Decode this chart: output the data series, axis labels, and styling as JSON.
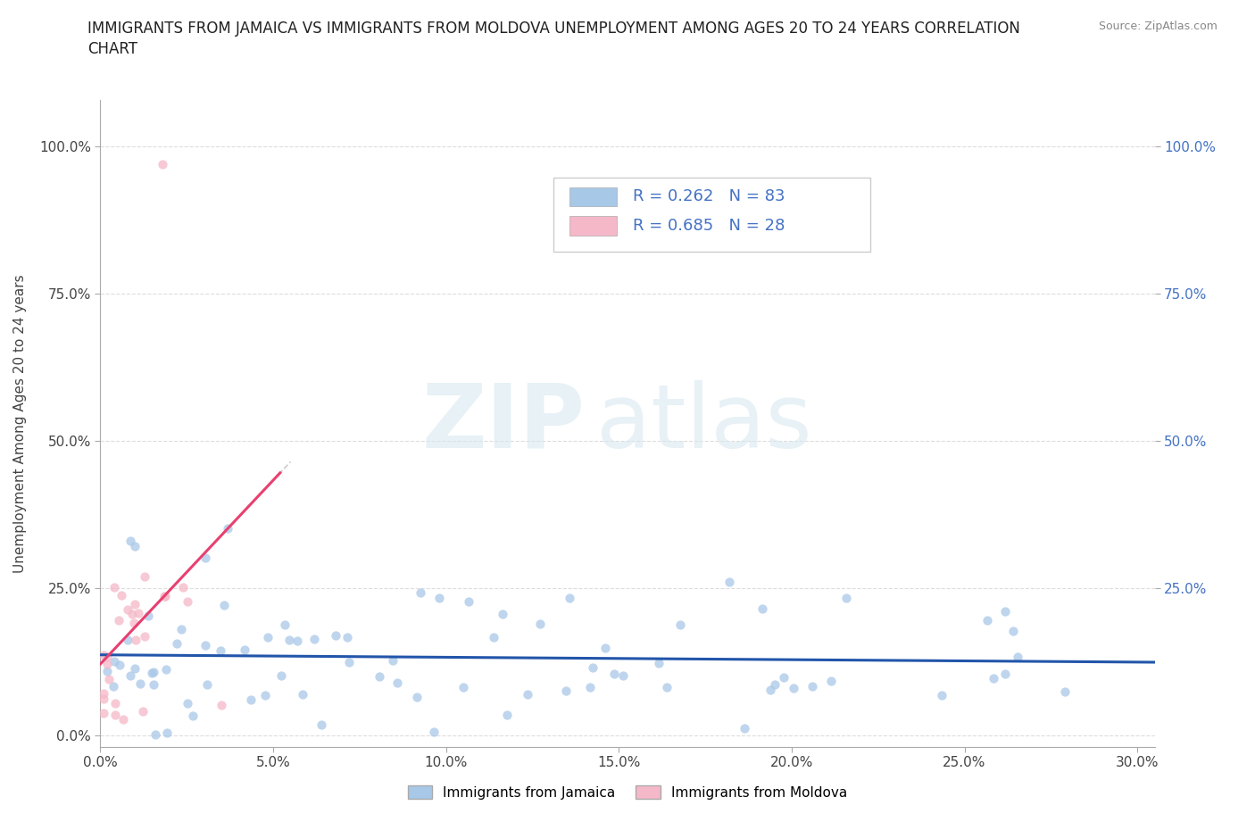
{
  "title_line1": "IMMIGRANTS FROM JAMAICA VS IMMIGRANTS FROM MOLDOVA UNEMPLOYMENT AMONG AGES 20 TO 24 YEARS CORRELATION",
  "title_line2": "CHART",
  "source_text": "Source: ZipAtlas.com",
  "ylabel": "Unemployment Among Ages 20 to 24 years",
  "xlim": [
    0.0,
    0.305
  ],
  "ylim": [
    -0.02,
    1.08
  ],
  "ylim_data": [
    0.0,
    1.0
  ],
  "xtick_labels": [
    "0.0%",
    "5.0%",
    "10.0%",
    "15.0%",
    "20.0%",
    "25.0%",
    "30.0%"
  ],
  "xtick_vals": [
    0.0,
    0.05,
    0.1,
    0.15,
    0.2,
    0.25,
    0.3
  ],
  "ytick_labels": [
    "0.0%",
    "25.0%",
    "50.0%",
    "75.0%",
    "100.0%"
  ],
  "ytick_vals": [
    0.0,
    0.25,
    0.5,
    0.75,
    1.0
  ],
  "right_ytick_labels": [
    "100.0%",
    "75.0%",
    "50.0%",
    "25.0%"
  ],
  "right_ytick_vals": [
    1.0,
    0.75,
    0.5,
    0.25
  ],
  "watermark_zip": "ZIP",
  "watermark_atlas": "atlas",
  "jamaica_color": "#a8c8e8",
  "moldova_color": "#f5b8c8",
  "jamaica_line_color": "#2255aa",
  "moldova_line_color": "#e84070",
  "dash_line_color": "#cccccc",
  "R_jamaica": 0.262,
  "N_jamaica": 83,
  "R_moldova": 0.685,
  "N_moldova": 28,
  "bg_color": "#ffffff",
  "grid_color": "#dddddd",
  "title_fontsize": 12,
  "label_fontsize": 11,
  "tick_fontsize": 11,
  "legend_fontsize": 13,
  "right_tick_color": "#4472c4"
}
